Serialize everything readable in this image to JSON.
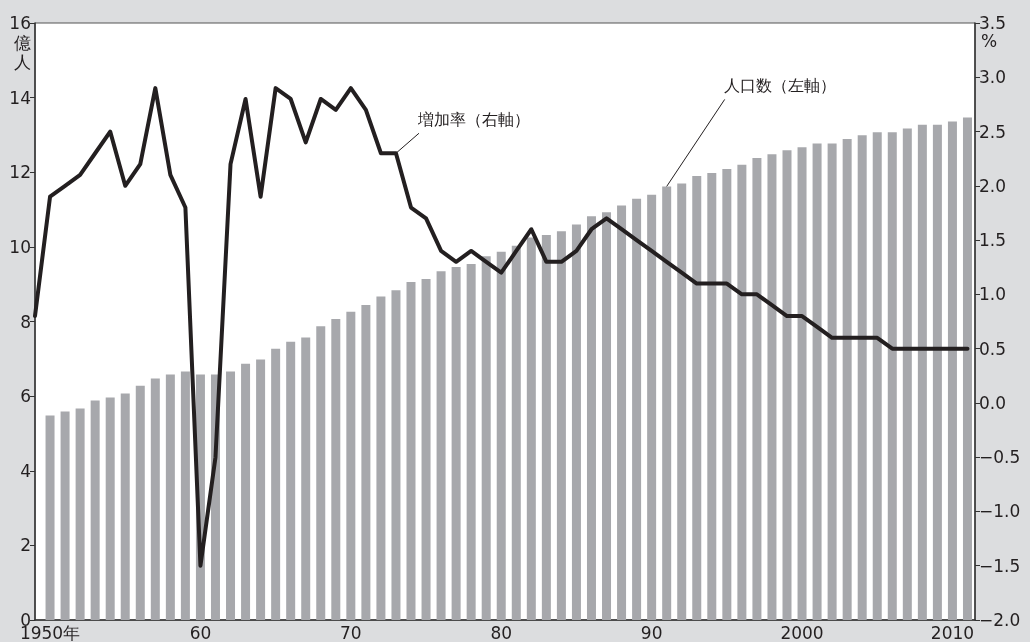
{
  "chart_data": {
    "type": "bar",
    "ylabel": "億人",
    "y2label": "%",
    "xlim": [
      1949,
      2011.5
    ],
    "xticks": [
      {
        "value": 1950,
        "label": "1950年"
      },
      {
        "value": 1960,
        "label": "60"
      },
      {
        "value": 1970,
        "label": "70"
      },
      {
        "value": 1980,
        "label": "80"
      },
      {
        "value": 1990,
        "label": "90"
      },
      2000,
      2010
    ],
    "ylim": [
      0,
      16
    ],
    "yticks": [
      0,
      2,
      4,
      6,
      8,
      10,
      12,
      14,
      16
    ],
    "y2lim": [
      -2,
      3.5
    ],
    "y2ticks": [
      {
        "value": -2,
        "label": "−2.0"
      },
      {
        "value": -1.5,
        "label": "−1.5"
      },
      {
        "value": -1,
        "label": "−1.0"
      },
      {
        "value": -0.5,
        "label": "−0.5"
      },
      {
        "value": 0,
        "label": "0.0"
      },
      0.5,
      {
        "value": 1,
        "label": "1.0"
      },
      1.5,
      {
        "value": 2,
        "label": "2.0"
      },
      2.5,
      {
        "value": 3,
        "label": "3.0"
      },
      3.5
    ],
    "marker": "none",
    "series": [
      {
        "name": "人口数（左軸）",
        "color": "#a7a8ac",
        "x": [
          1950,
          1951,
          1952,
          1953,
          1954,
          1955,
          1956,
          1957,
          1958,
          1959,
          1960,
          1961,
          1962,
          1963,
          1964,
          1965,
          1966,
          1967,
          1968,
          1969,
          1970,
          1971,
          1972,
          1973,
          1974,
          1975,
          1976,
          1977,
          1978,
          1979,
          1980,
          1981,
          1982,
          1983,
          1984,
          1985,
          1986,
          1987,
          1988,
          1989,
          1990,
          1991,
          1992,
          1993,
          1994,
          1995,
          1996,
          1997,
          1998,
          1999,
          2000,
          2001,
          2002,
          2003,
          2004,
          2005,
          2006,
          2007,
          2008,
          2009,
          2010,
          2011
        ],
        "values": [
          5.48,
          5.59,
          5.67,
          5.88,
          5.96,
          6.07,
          6.28,
          6.47,
          6.58,
          6.66,
          6.58,
          6.58,
          6.66,
          6.87,
          6.98,
          7.27,
          7.46,
          7.57,
          7.87,
          8.07,
          8.26,
          8.44,
          8.67,
          8.84,
          9.06,
          9.14,
          9.35,
          9.46,
          9.54,
          9.75,
          9.87,
          10.03,
          10.25,
          10.32,
          10.42,
          10.6,
          10.82,
          10.93,
          11.11,
          11.29,
          11.4,
          11.62,
          11.7,
          11.9,
          11.98,
          12.09,
          12.2,
          12.38,
          12.48,
          12.59,
          12.67,
          12.77,
          12.77,
          12.89,
          12.99,
          13.07,
          13.07,
          13.17,
          13.27,
          13.27,
          13.36,
          13.47
        ]
      },
      {
        "name": "増加率（右軸）",
        "type": "line",
        "axis": "y2",
        "color": "#231f20",
        "x": [
          1949,
          1950,
          1951,
          1952,
          1953,
          1954,
          1955,
          1956,
          1957,
          1958,
          1959,
          1960,
          1961,
          1962,
          1963,
          1964,
          1965,
          1966,
          1967,
          1968,
          1969,
          1970,
          1971,
          1972,
          1973,
          1974,
          1975,
          1976,
          1977,
          1978,
          1979,
          1980,
          1981,
          1982,
          1983,
          1984,
          1985,
          1986,
          1987,
          1988,
          1989,
          1990,
          1991,
          1992,
          1993,
          1994,
          1995,
          1996,
          1997,
          1998,
          1999,
          2000,
          2001,
          2002,
          2003,
          2004,
          2005,
          2006,
          2007,
          2008,
          2009,
          2010,
          2011
        ],
        "values": [
          0.8,
          1.9,
          2.0,
          2.1,
          2.3,
          2.5,
          2.0,
          2.2,
          2.9,
          2.1,
          1.8,
          -1.5,
          -0.5,
          2.2,
          2.8,
          1.9,
          2.9,
          2.8,
          2.4,
          2.8,
          2.7,
          2.9,
          2.7,
          2.3,
          2.3,
          1.8,
          1.7,
          1.4,
          1.3,
          1.4,
          1.3,
          1.2,
          1.4,
          1.6,
          1.3,
          1.3,
          1.4,
          1.6,
          1.7,
          1.6,
          1.5,
          1.4,
          1.3,
          1.2,
          1.1,
          1.1,
          1.1,
          1.0,
          1.0,
          0.9,
          0.8,
          0.8,
          0.7,
          0.6,
          0.6,
          0.6,
          0.6,
          0.5,
          0.5,
          0.5,
          0.5,
          0.5,
          0.5
        ]
      }
    ]
  }
}
